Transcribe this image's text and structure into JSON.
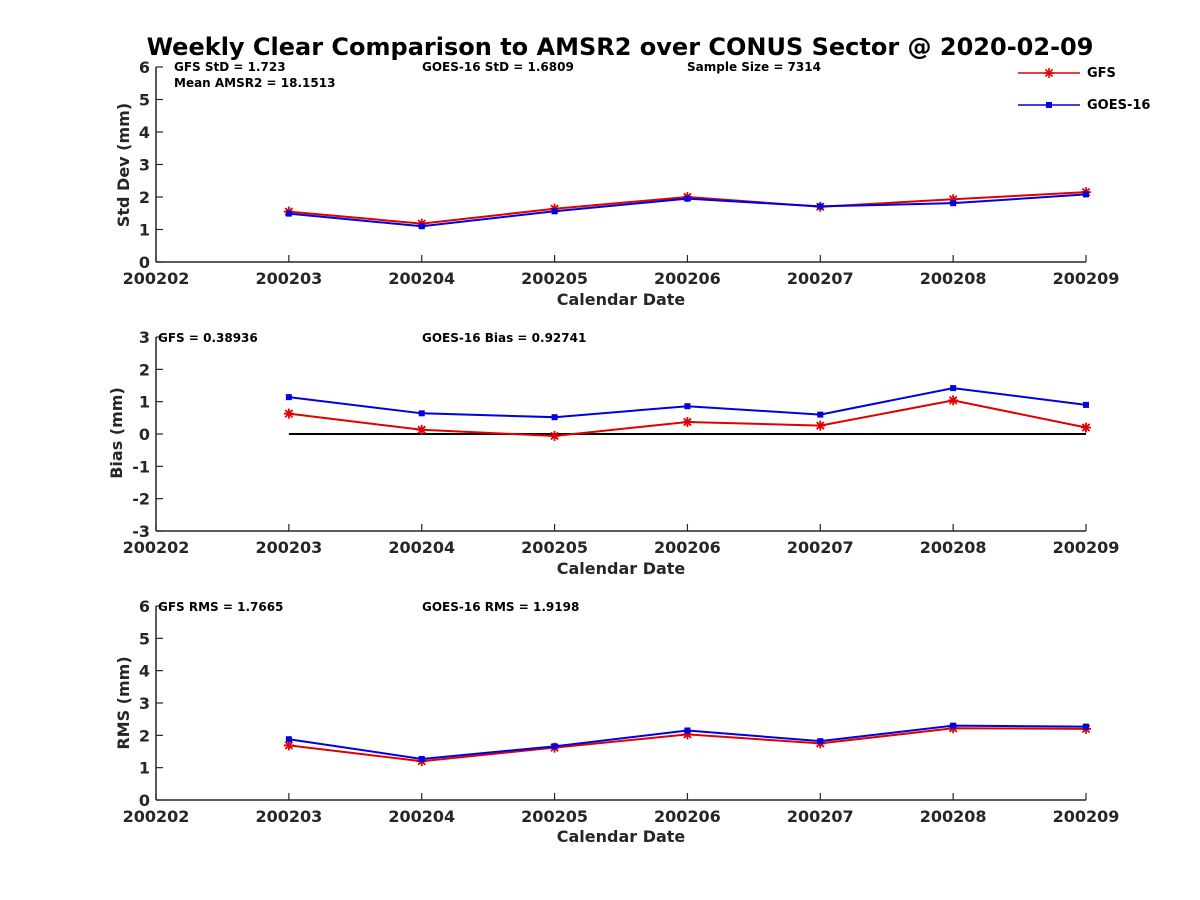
{
  "title": "Weekly Clear Comparison to AMSR2 over CONUS Sector @ 2020-02-09",
  "legend": {
    "placement": "top-right",
    "items": [
      {
        "name": "GFS",
        "color": "#e00000",
        "marker": "asterisk"
      },
      {
        "name": "GOES-16",
        "color": "#0000e0",
        "marker": "square"
      }
    ]
  },
  "chart_data": [
    {
      "type": "line",
      "xlabel": "Calendar Date",
      "ylabel": "Std Dev (mm)",
      "ylim": [
        0,
        6
      ],
      "yticks": [
        "0",
        "1",
        "2",
        "3",
        "4",
        "5",
        "6"
      ],
      "xticks": [
        "200202",
        "200203",
        "200204",
        "200205",
        "200206",
        "200207",
        "200208",
        "200209"
      ],
      "x": [
        "200203",
        "200204",
        "200205",
        "200206",
        "200207",
        "200208",
        "200209"
      ],
      "series": [
        {
          "name": "GFS",
          "color": "#e00000",
          "values": [
            1.55,
            1.18,
            1.64,
            2.0,
            1.7,
            1.93,
            2.15
          ]
        },
        {
          "name": "GOES-16",
          "color": "#0000e0",
          "values": [
            1.49,
            1.1,
            1.56,
            1.95,
            1.71,
            1.81,
            2.08
          ]
        }
      ],
      "annotations": [
        "GFS StD = 1.723",
        "Mean AMSR2 = 18.1513",
        "GOES-16 StD = 1.6809",
        "Sample Size = 7314"
      ]
    },
    {
      "type": "line",
      "xlabel": "Calendar Date",
      "ylabel": "Bias (mm)",
      "ylim": [
        -3,
        3
      ],
      "yticks": [
        "-3",
        "-2",
        "-1",
        "0",
        "1",
        "2",
        "3"
      ],
      "xticks": [
        "200202",
        "200203",
        "200204",
        "200205",
        "200206",
        "200207",
        "200208",
        "200209"
      ],
      "x": [
        "200203",
        "200204",
        "200205",
        "200206",
        "200207",
        "200208",
        "200209"
      ],
      "zero_line": {
        "y": 0,
        "from": "200203",
        "to": "200209",
        "color": "#000000"
      },
      "series": [
        {
          "name": "GFS",
          "color": "#e00000",
          "values": [
            0.63,
            0.13,
            -0.06,
            0.37,
            0.26,
            1.04,
            0.2
          ]
        },
        {
          "name": "GOES-16",
          "color": "#0000e0",
          "values": [
            1.14,
            0.64,
            0.52,
            0.86,
            0.6,
            1.42,
            0.9
          ]
        }
      ],
      "annotations": [
        "GFS = 0.38936",
        "GOES-16 Bias  = 0.92741"
      ]
    },
    {
      "type": "line",
      "xlabel": "Calendar Date",
      "ylabel": "RMS (mm)",
      "ylim": [
        0,
        6
      ],
      "yticks": [
        "0",
        "1",
        "2",
        "3",
        "4",
        "5",
        "6"
      ],
      "xticks": [
        "200202",
        "200203",
        "200204",
        "200205",
        "200206",
        "200207",
        "200208",
        "200209"
      ],
      "x": [
        "200203",
        "200204",
        "200205",
        "200206",
        "200207",
        "200208",
        "200209"
      ],
      "series": [
        {
          "name": "GFS",
          "color": "#e00000",
          "values": [
            1.69,
            1.2,
            1.62,
            2.03,
            1.75,
            2.22,
            2.2
          ]
        },
        {
          "name": "GOES-16",
          "color": "#0000e0",
          "values": [
            1.88,
            1.27,
            1.66,
            2.15,
            1.82,
            2.3,
            2.27
          ]
        }
      ],
      "annotations": [
        "GFS RMS = 1.7665",
        "GOES-16 RMS = 1.9198"
      ]
    }
  ]
}
